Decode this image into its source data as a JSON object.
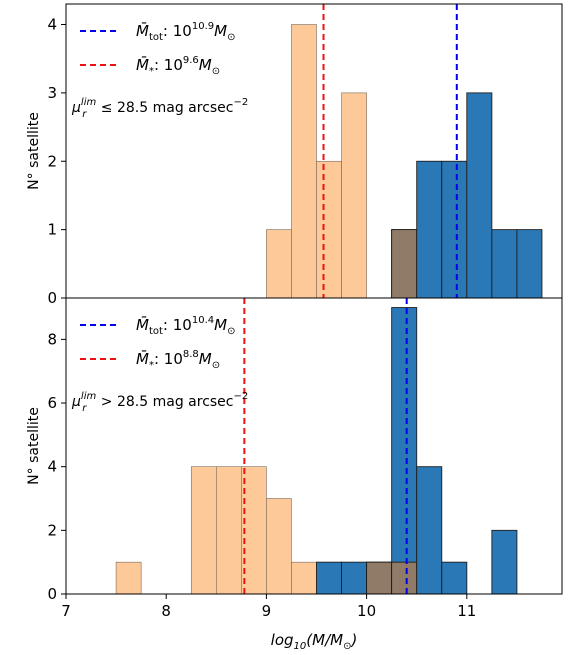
{
  "chart_data": [
    {
      "type": "bar",
      "panel": "top",
      "bin_width": 0.25,
      "xlim": [
        7,
        11.95
      ],
      "ylim": [
        0,
        4.3
      ],
      "yticks": [
        0,
        1,
        2,
        3,
        4
      ],
      "ylabel": "N° satellite",
      "series": [
        {
          "color": "#fdc998",
          "bins": [
            {
              "x": 9.0,
              "count": 1
            },
            {
              "x": 9.25,
              "count": 4
            },
            {
              "x": 9.5,
              "count": 2
            },
            {
              "x": 9.75,
              "count": 3
            },
            {
              "x": 10.25,
              "count": 1
            }
          ]
        },
        {
          "color": "#2a78b5",
          "bins": [
            {
              "x": 10.25,
              "count": 1
            },
            {
              "x": 10.5,
              "count": 2
            },
            {
              "x": 10.75,
              "count": 2
            },
            {
              "x": 11.0,
              "count": 3
            },
            {
              "x": 11.25,
              "count": 1
            },
            {
              "x": 11.5,
              "count": 1
            }
          ]
        }
      ],
      "overlap_color": "#907b68",
      "vlines": [
        {
          "x": 10.9,
          "color": "#0000ee",
          "legend_prefix": "M̄",
          "legend_sub": "tot",
          "legend_mid": ": 10",
          "legend_exp": "10.9",
          "legend_unit": "M",
          "legend_unit_sub": "⊙"
        },
        {
          "x": 9.57,
          "color": "#ee1111",
          "legend_prefix": "M̄",
          "legend_sub": "*",
          "legend_mid": ": 10",
          "legend_exp": "9.6",
          "legend_unit": "M",
          "legend_unit_sub": "⊙"
        }
      ],
      "annotation": {
        "mu": "μ",
        "sub": "r",
        "sup": "lim",
        "cond": " ≤ 28.5 mag arcsec",
        "exp": "−2"
      }
    },
    {
      "type": "bar",
      "panel": "bottom",
      "bin_width": 0.25,
      "xlim": [
        7,
        11.95
      ],
      "ylim": [
        0,
        9.3
      ],
      "yticks": [
        0,
        2,
        4,
        6,
        8
      ],
      "ylabel": "N° satellite",
      "xlabel": "log10(M/M⊙)",
      "xticks": [
        7,
        8,
        9,
        10,
        11
      ],
      "series": [
        {
          "color": "#fdc998",
          "bins": [
            {
              "x": 7.5,
              "count": 1
            },
            {
              "x": 8.25,
              "count": 4
            },
            {
              "x": 8.5,
              "count": 4
            },
            {
              "x": 8.75,
              "count": 4
            },
            {
              "x": 9.0,
              "count": 3
            },
            {
              "x": 9.25,
              "count": 1
            },
            {
              "x": 10.0,
              "count": 1
            },
            {
              "x": 10.25,
              "count": 1
            }
          ]
        },
        {
          "color": "#2a78b5",
          "bins": [
            {
              "x": 9.5,
              "count": 1
            },
            {
              "x": 9.75,
              "count": 1
            },
            {
              "x": 10.0,
              "count": 1
            },
            {
              "x": 10.25,
              "count": 9
            },
            {
              "x": 10.5,
              "count": 4
            },
            {
              "x": 10.75,
              "count": 1
            },
            {
              "x": 11.25,
              "count": 2
            }
          ]
        }
      ],
      "overlap_color": "#907b68",
      "vlines": [
        {
          "x": 10.4,
          "color": "#0000ee",
          "legend_prefix": "M̄",
          "legend_sub": "tot",
          "legend_mid": ": 10",
          "legend_exp": "10.4",
          "legend_unit": "M",
          "legend_unit_sub": "⊙"
        },
        {
          "x": 8.78,
          "color": "#ee1111",
          "legend_prefix": "M̄",
          "legend_sub": "*",
          "legend_mid": ": 10",
          "legend_exp": "8.8",
          "legend_unit": "M",
          "legend_unit_sub": "⊙"
        }
      ],
      "annotation": {
        "mu": "μ",
        "sub": "r",
        "sup": "lim",
        "cond": " > 28.5 mag arcsec",
        "exp": "−2"
      }
    }
  ],
  "xlabel_parts": {
    "pre": "log",
    "sub": "10",
    "post": "(M/M",
    "sun": "⊙",
    "close": ")"
  }
}
